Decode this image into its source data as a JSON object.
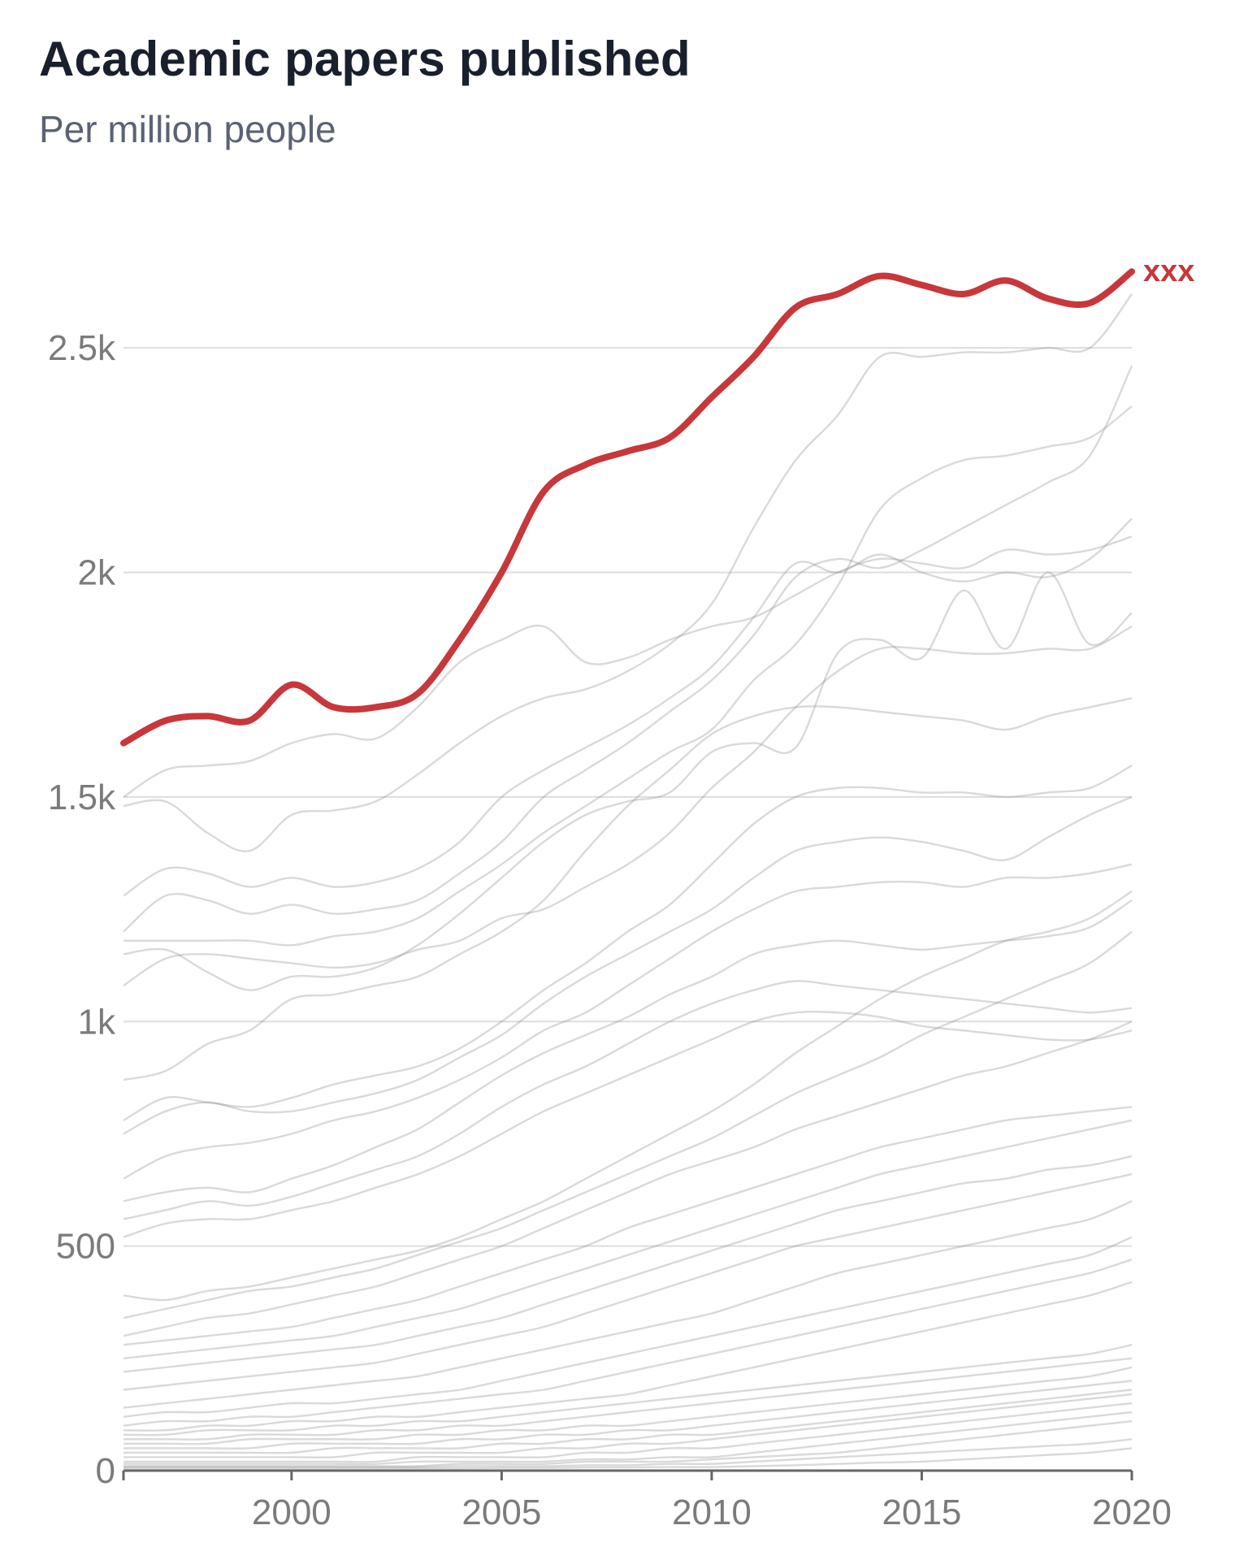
{
  "title": "Academic papers published",
  "subtitle": "Per million people",
  "colors": {
    "highlight": "#c8373a",
    "background_lines": "#8a8a8a",
    "grid": "#dddddd",
    "axis": "#666666",
    "tick_text": "#7b7b7b"
  },
  "chart_data": {
    "type": "line",
    "title": "Academic papers published",
    "subtitle": "Per million people",
    "xlabel": "",
    "ylabel": "",
    "xlim": [
      1996,
      2020
    ],
    "ylim": [
      0,
      2750
    ],
    "x_ticks": [
      2000,
      2005,
      2010,
      2015,
      2020
    ],
    "x_tick_labels": [
      "2000",
      "2005",
      "2010",
      "2015",
      "2020"
    ],
    "y_ticks": [
      0,
      500,
      1000,
      1500,
      2000,
      2500
    ],
    "y_tick_labels": [
      "0",
      "500",
      "1k",
      "1.5k",
      "2k",
      "2.5k"
    ],
    "grid": "horizontal",
    "x": [
      1996,
      1997,
      1998,
      1999,
      2000,
      2001,
      2002,
      2003,
      2004,
      2005,
      2006,
      2007,
      2008,
      2009,
      2010,
      2011,
      2012,
      2013,
      2014,
      2015,
      2016,
      2017,
      2018,
      2019,
      2020
    ],
    "highlight_series": {
      "name": "xxx",
      "values": [
        1620,
        1670,
        1680,
        1670,
        1750,
        1700,
        1700,
        1730,
        1850,
        2000,
        2180,
        2240,
        2270,
        2300,
        2390,
        2480,
        2590,
        2620,
        2660,
        2640,
        2620,
        2650,
        2610,
        2600,
        2670
      ]
    },
    "background_series": [
      {
        "values": [
          1500,
          1560,
          1570,
          1580,
          1620,
          1640,
          1630,
          1700,
          1800,
          1850,
          1880,
          1800,
          1810,
          1850,
          1880,
          1900,
          1950,
          2000,
          2030,
          2020,
          2010,
          2050,
          2040,
          2050,
          2080
        ]
      },
      {
        "values": [
          1480,
          1490,
          1420,
          1380,
          1460,
          1470,
          1490,
          1550,
          1620,
          1680,
          1720,
          1740,
          1780,
          1840,
          1930,
          2100,
          2250,
          2350,
          2480,
          2480,
          2490,
          2490,
          2500,
          2500,
          2620
        ]
      },
      {
        "values": [
          1280,
          1340,
          1330,
          1300,
          1320,
          1300,
          1310,
          1340,
          1400,
          1500,
          1560,
          1610,
          1660,
          1720,
          1790,
          1900,
          2020,
          2000,
          2040,
          2000,
          1980,
          2000,
          1990,
          2030,
          2120
        ]
      },
      {
        "values": [
          1200,
          1280,
          1270,
          1240,
          1260,
          1240,
          1250,
          1270,
          1330,
          1400,
          1500,
          1560,
          1620,
          1690,
          1760,
          1860,
          1990,
          2030,
          2010,
          2050,
          2100,
          2150,
          2200,
          2260,
          2460
        ]
      },
      {
        "values": [
          1180,
          1180,
          1180,
          1180,
          1170,
          1190,
          1200,
          1230,
          1290,
          1350,
          1420,
          1480,
          1540,
          1600,
          1650,
          1760,
          1840,
          1970,
          2140,
          2210,
          2250,
          2260,
          2280,
          2300,
          2370
        ]
      },
      {
        "values": [
          1150,
          1160,
          1110,
          1070,
          1100,
          1100,
          1120,
          1170,
          1240,
          1320,
          1400,
          1460,
          1490,
          1510,
          1600,
          1620,
          1610,
          1820,
          1850,
          1810,
          1960,
          1830,
          2000,
          1840,
          1910
        ]
      },
      {
        "values": [
          1080,
          1140,
          1150,
          1140,
          1130,
          1120,
          1130,
          1160,
          1180,
          1230,
          1250,
          1300,
          1350,
          1420,
          1520,
          1600,
          1700,
          1780,
          1830,
          1830,
          1820,
          1820,
          1830,
          1830,
          1880
        ]
      },
      {
        "values": [
          870,
          890,
          950,
          980,
          1050,
          1060,
          1080,
          1100,
          1150,
          1200,
          1270,
          1380,
          1480,
          1560,
          1640,
          1680,
          1700,
          1700,
          1690,
          1680,
          1670,
          1650,
          1680,
          1700,
          1720
        ]
      },
      {
        "values": [
          780,
          830,
          820,
          810,
          830,
          860,
          880,
          900,
          940,
          1000,
          1070,
          1130,
          1200,
          1260,
          1350,
          1440,
          1500,
          1520,
          1520,
          1510,
          1510,
          1500,
          1510,
          1520,
          1570
        ]
      },
      {
        "values": [
          750,
          800,
          820,
          800,
          800,
          820,
          840,
          870,
          920,
          970,
          1040,
          1100,
          1150,
          1200,
          1250,
          1320,
          1380,
          1400,
          1410,
          1400,
          1380,
          1360,
          1410,
          1460,
          1500
        ]
      },
      {
        "values": [
          650,
          700,
          720,
          730,
          750,
          780,
          800,
          830,
          870,
          920,
          980,
          1020,
          1080,
          1140,
          1200,
          1250,
          1290,
          1300,
          1310,
          1310,
          1300,
          1320,
          1320,
          1330,
          1350
        ]
      },
      {
        "values": [
          600,
          620,
          630,
          620,
          650,
          680,
          720,
          760,
          820,
          880,
          930,
          970,
          1010,
          1060,
          1100,
          1150,
          1170,
          1180,
          1170,
          1160,
          1170,
          1180,
          1190,
          1210,
          1270
        ]
      },
      {
        "values": [
          560,
          580,
          600,
          590,
          610,
          640,
          670,
          700,
          750,
          810,
          860,
          900,
          950,
          1000,
          1040,
          1070,
          1090,
          1080,
          1070,
          1060,
          1050,
          1040,
          1030,
          1020,
          1030
        ]
      },
      {
        "values": [
          520,
          550,
          560,
          560,
          580,
          600,
          630,
          660,
          700,
          750,
          800,
          840,
          880,
          920,
          960,
          1000,
          1020,
          1020,
          1010,
          990,
          980,
          970,
          960,
          960,
          980
        ]
      },
      {
        "values": [
          390,
          380,
          400,
          410,
          430,
          450,
          470,
          490,
          520,
          560,
          600,
          650,
          700,
          750,
          800,
          860,
          930,
          990,
          1050,
          1100,
          1140,
          1180,
          1200,
          1230,
          1290
        ]
      },
      {
        "values": [
          340,
          360,
          380,
          400,
          410,
          430,
          450,
          480,
          510,
          540,
          580,
          620,
          660,
          700,
          740,
          790,
          840,
          880,
          920,
          970,
          1010,
          1050,
          1090,
          1130,
          1200
        ]
      },
      {
        "values": [
          300,
          320,
          340,
          350,
          370,
          390,
          410,
          440,
          470,
          500,
          540,
          580,
          620,
          660,
          690,
          720,
          760,
          790,
          820,
          850,
          880,
          900,
          930,
          960,
          1000
        ]
      },
      {
        "values": [
          280,
          290,
          300,
          310,
          320,
          340,
          360,
          380,
          410,
          440,
          470,
          500,
          540,
          570,
          600,
          630,
          660,
          690,
          720,
          740,
          760,
          780,
          790,
          800,
          810
        ]
      },
      {
        "values": [
          250,
          260,
          270,
          280,
          290,
          300,
          320,
          340,
          360,
          390,
          420,
          450,
          480,
          510,
          540,
          570,
          600,
          630,
          660,
          680,
          700,
          720,
          740,
          760,
          780
        ]
      },
      {
        "values": [
          220,
          230,
          240,
          250,
          260,
          270,
          280,
          300,
          320,
          340,
          370,
          400,
          430,
          460,
          490,
          520,
          550,
          580,
          600,
          620,
          640,
          650,
          670,
          680,
          700
        ]
      },
      {
        "values": [
          180,
          190,
          200,
          210,
          220,
          230,
          240,
          260,
          280,
          300,
          320,
          350,
          380,
          410,
          440,
          470,
          500,
          520,
          540,
          560,
          580,
          600,
          620,
          640,
          660
        ]
      },
      {
        "values": [
          140,
          150,
          160,
          170,
          180,
          190,
          200,
          210,
          230,
          250,
          270,
          290,
          310,
          330,
          350,
          380,
          410,
          440,
          460,
          480,
          500,
          520,
          540,
          560,
          600
        ]
      },
      {
        "values": [
          120,
          130,
          130,
          140,
          150,
          150,
          160,
          170,
          180,
          200,
          220,
          240,
          260,
          280,
          300,
          320,
          340,
          360,
          380,
          400,
          420,
          440,
          460,
          480,
          520
        ]
      },
      {
        "values": [
          100,
          110,
          110,
          120,
          120,
          130,
          140,
          150,
          160,
          170,
          180,
          200,
          220,
          240,
          260,
          280,
          300,
          320,
          340,
          360,
          380,
          400,
          420,
          440,
          470
        ]
      },
      {
        "values": [
          90,
          90,
          100,
          100,
          110,
          110,
          120,
          120,
          130,
          140,
          150,
          160,
          170,
          190,
          210,
          230,
          250,
          270,
          290,
          310,
          330,
          350,
          370,
          390,
          420
        ]
      },
      {
        "values": [
          80,
          80,
          90,
          90,
          90,
          100,
          100,
          110,
          110,
          120,
          130,
          140,
          150,
          160,
          170,
          180,
          190,
          200,
          210,
          220,
          230,
          240,
          250,
          260,
          280
        ]
      },
      {
        "values": [
          70,
          70,
          70,
          80,
          80,
          80,
          90,
          90,
          100,
          100,
          110,
          120,
          130,
          140,
          150,
          160,
          170,
          180,
          190,
          200,
          210,
          220,
          230,
          240,
          250
        ]
      },
      {
        "values": [
          60,
          60,
          60,
          70,
          70,
          70,
          70,
          80,
          80,
          90,
          90,
          100,
          100,
          110,
          120,
          130,
          140,
          150,
          160,
          170,
          180,
          190,
          200,
          210,
          230
        ]
      },
      {
        "values": [
          50,
          50,
          50,
          50,
          60,
          60,
          60,
          60,
          70,
          70,
          80,
          80,
          90,
          90,
          100,
          110,
          120,
          130,
          140,
          150,
          160,
          170,
          180,
          190,
          200
        ]
      },
      {
        "values": [
          40,
          40,
          40,
          40,
          40,
          50,
          50,
          50,
          50,
          60,
          60,
          70,
          70,
          80,
          80,
          90,
          100,
          110,
          120,
          130,
          140,
          150,
          160,
          170,
          180
        ]
      },
      {
        "values": [
          30,
          30,
          30,
          30,
          30,
          30,
          40,
          40,
          40,
          40,
          50,
          50,
          60,
          60,
          70,
          80,
          90,
          100,
          110,
          120,
          130,
          140,
          150,
          160,
          170
        ]
      },
      {
        "values": [
          20,
          20,
          20,
          20,
          20,
          20,
          20,
          30,
          30,
          30,
          30,
          40,
          40,
          50,
          50,
          60,
          70,
          80,
          90,
          100,
          110,
          120,
          130,
          140,
          150
        ]
      },
      {
        "values": [
          15,
          15,
          15,
          15,
          15,
          15,
          15,
          20,
          20,
          20,
          20,
          25,
          25,
          30,
          30,
          40,
          50,
          60,
          70,
          80,
          90,
          100,
          110,
          120,
          130
        ]
      },
      {
        "values": [
          10,
          10,
          10,
          10,
          10,
          10,
          10,
          10,
          15,
          15,
          15,
          20,
          20,
          20,
          25,
          30,
          35,
          40,
          50,
          60,
          70,
          80,
          90,
          100,
          110
        ]
      },
      {
        "values": [
          8,
          8,
          8,
          8,
          8,
          8,
          8,
          8,
          10,
          10,
          10,
          12,
          12,
          15,
          15,
          20,
          25,
          30,
          35,
          40,
          45,
          50,
          55,
          60,
          70
        ]
      },
      {
        "values": [
          5,
          5,
          5,
          5,
          5,
          5,
          5,
          5,
          5,
          6,
          6,
          7,
          7,
          8,
          8,
          10,
          12,
          15,
          18,
          20,
          25,
          30,
          35,
          40,
          50
        ]
      }
    ]
  }
}
